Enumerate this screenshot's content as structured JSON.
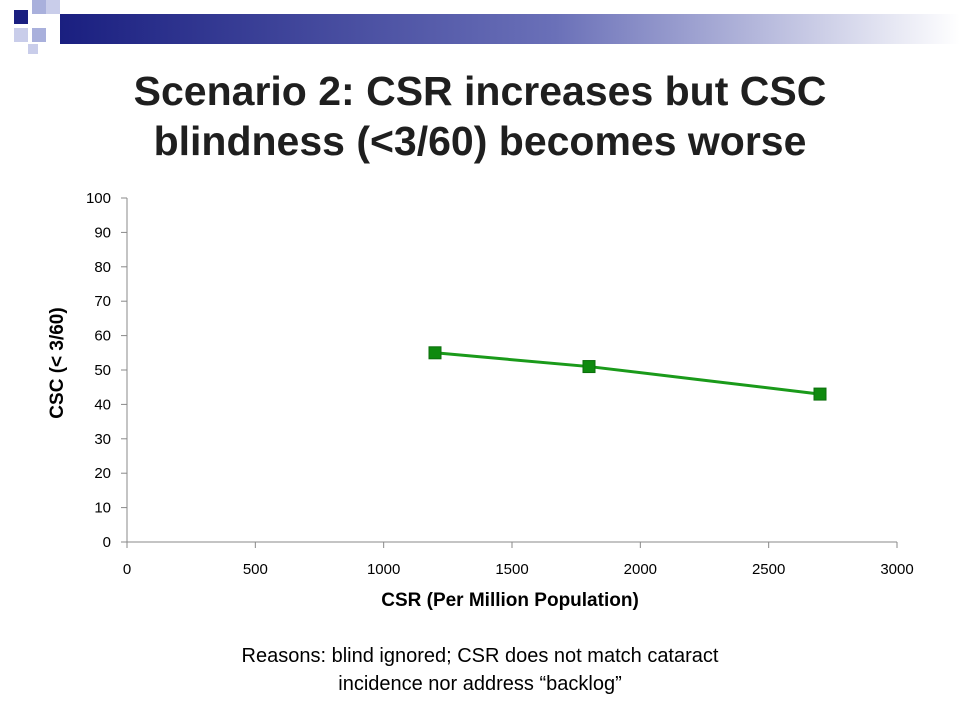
{
  "slide": {
    "title_line1": "Scenario 2: CSR increases but CSC",
    "title_line2": "blindness (<3/60) becomes worse",
    "caption_line1": "Reasons: blind ignored; CSR does not match cataract",
    "caption_line2": "incidence nor address “backlog”"
  },
  "colors": {
    "decor_navy": "#1a1f80",
    "decor_light": "#a9b0dc",
    "series": "#1a9a1a",
    "marker": "#0f8a0f",
    "axis": "#888888"
  },
  "chart_data": {
    "type": "line",
    "xlabel": "CSR (Per Million Population)",
    "ylabel": "CSC (< 3/60)",
    "xlim": [
      0,
      3000
    ],
    "ylim": [
      0,
      100
    ],
    "xticks": [
      0,
      500,
      1000,
      1500,
      2000,
      2500,
      3000
    ],
    "yticks": [
      0,
      10,
      20,
      30,
      40,
      50,
      60,
      70,
      80,
      90,
      100
    ],
    "grid": false,
    "series": [
      {
        "x": [
          1200,
          1800,
          2700
        ],
        "y": [
          55,
          51,
          43
        ]
      }
    ]
  }
}
